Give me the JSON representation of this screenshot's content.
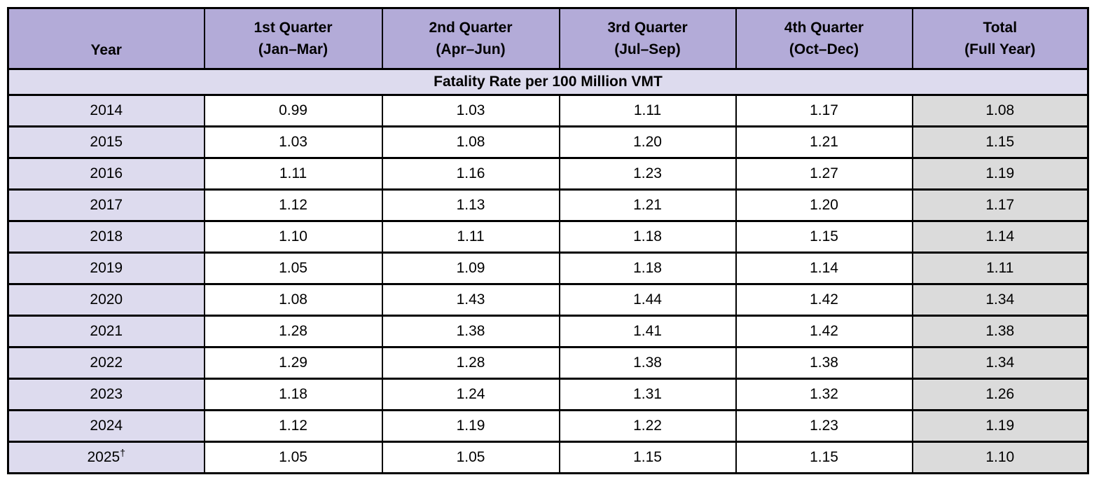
{
  "table": {
    "columns": [
      {
        "line1": "Year",
        "line2": ""
      },
      {
        "line1": "1st Quarter",
        "line2": "(Jan–Mar)"
      },
      {
        "line1": "2nd Quarter",
        "line2": "(Apr–Jun)"
      },
      {
        "line1": "3rd Quarter",
        "line2": "(Jul–Sep)"
      },
      {
        "line1": "4th Quarter",
        "line2": "(Oct–Dec)"
      },
      {
        "line1": "Total",
        "line2": "(Full Year)"
      }
    ],
    "section_header": "Fatality Rate per 100 Million VMT",
    "rows": [
      {
        "year": "2014",
        "year_marker": "",
        "q1": "0.99",
        "q2": "1.03",
        "q3": "1.11",
        "q4": "1.17",
        "total": "1.08"
      },
      {
        "year": "2015",
        "year_marker": "",
        "q1": "1.03",
        "q2": "1.08",
        "q3": "1.20",
        "q4": "1.21",
        "total": "1.15"
      },
      {
        "year": "2016",
        "year_marker": "",
        "q1": "1.11",
        "q2": "1.16",
        "q3": "1.23",
        "q4": "1.27",
        "total": "1.19"
      },
      {
        "year": "2017",
        "year_marker": "",
        "q1": "1.12",
        "q2": "1.13",
        "q3": "1.21",
        "q4": "1.20",
        "total": "1.17"
      },
      {
        "year": "2018",
        "year_marker": "",
        "q1": "1.10",
        "q2": "1.11",
        "q3": "1.18",
        "q4": "1.15",
        "total": "1.14"
      },
      {
        "year": "2019",
        "year_marker": "",
        "q1": "1.05",
        "q2": "1.09",
        "q3": "1.18",
        "q4": "1.14",
        "total": "1.11"
      },
      {
        "year": "2020",
        "year_marker": "",
        "q1": "1.08",
        "q2": "1.43",
        "q3": "1.44",
        "q4": "1.42",
        "total": "1.34"
      },
      {
        "year": "2021",
        "year_marker": "",
        "q1": "1.28",
        "q2": "1.38",
        "q3": "1.41",
        "q4": "1.42",
        "total": "1.38"
      },
      {
        "year": "2022",
        "year_marker": "",
        "q1": "1.29",
        "q2": "1.28",
        "q3": "1.38",
        "q4": "1.38",
        "total": "1.34"
      },
      {
        "year": "2023",
        "year_marker": "",
        "q1": "1.18",
        "q2": "1.24",
        "q3": "1.31",
        "q4": "1.32",
        "total": "1.26"
      },
      {
        "year": "2024",
        "year_marker": "",
        "q1": "1.12",
        "q2": "1.19",
        "q3": "1.22",
        "q4": "1.23",
        "total": "1.19"
      },
      {
        "year": "2025",
        "year_marker": "†",
        "q1": "1.05",
        "q2": "1.05",
        "q3": "1.15",
        "q4": "1.15",
        "total": "1.10"
      }
    ],
    "colors": {
      "header_bg": "#B3ABD8",
      "section_bg": "#DDDBEE",
      "year_col_bg": "#DDDBEE",
      "total_col_bg": "#DBDBDB",
      "border": "#000000",
      "text": "#000000"
    }
  }
}
